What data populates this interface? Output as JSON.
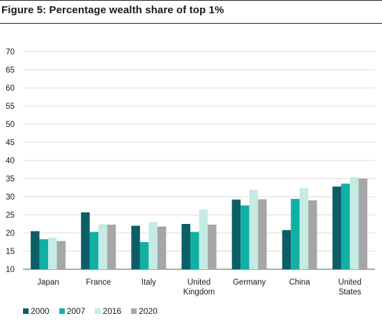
{
  "title": "Figure 5: Percentage wealth share of top 1%",
  "chart_data": {
    "type": "bar",
    "categories": [
      [
        "Japan"
      ],
      [
        "France"
      ],
      [
        "Italy"
      ],
      [
        "United",
        "Kingdom"
      ],
      [
        "Germany"
      ],
      [
        "China"
      ],
      [
        "United",
        "States"
      ]
    ],
    "series": [
      {
        "name": "2000",
        "color": "#0d5d66",
        "values": [
          20.5,
          25.7,
          22.0,
          22.5,
          29.2,
          20.8,
          32.8
        ]
      },
      {
        "name": "2007",
        "color": "#11b0a5",
        "values": [
          18.3,
          20.3,
          17.5,
          20.3,
          27.6,
          29.4,
          33.6
        ]
      },
      {
        "name": "2016",
        "color": "#c4ebe4",
        "values": [
          18.7,
          22.4,
          23.0,
          26.5,
          31.9,
          32.4,
          35.4
        ]
      },
      {
        "name": "2020",
        "color": "#a6a6a6",
        "values": [
          17.8,
          22.3,
          21.8,
          22.3,
          29.3,
          29.0,
          35.0
        ]
      }
    ],
    "yticks": [
      10,
      15,
      20,
      25,
      30,
      35,
      40,
      45,
      50,
      55,
      60,
      65,
      70
    ],
    "ylim": [
      10,
      70
    ],
    "grid": true,
    "legend": "bottom-left"
  }
}
